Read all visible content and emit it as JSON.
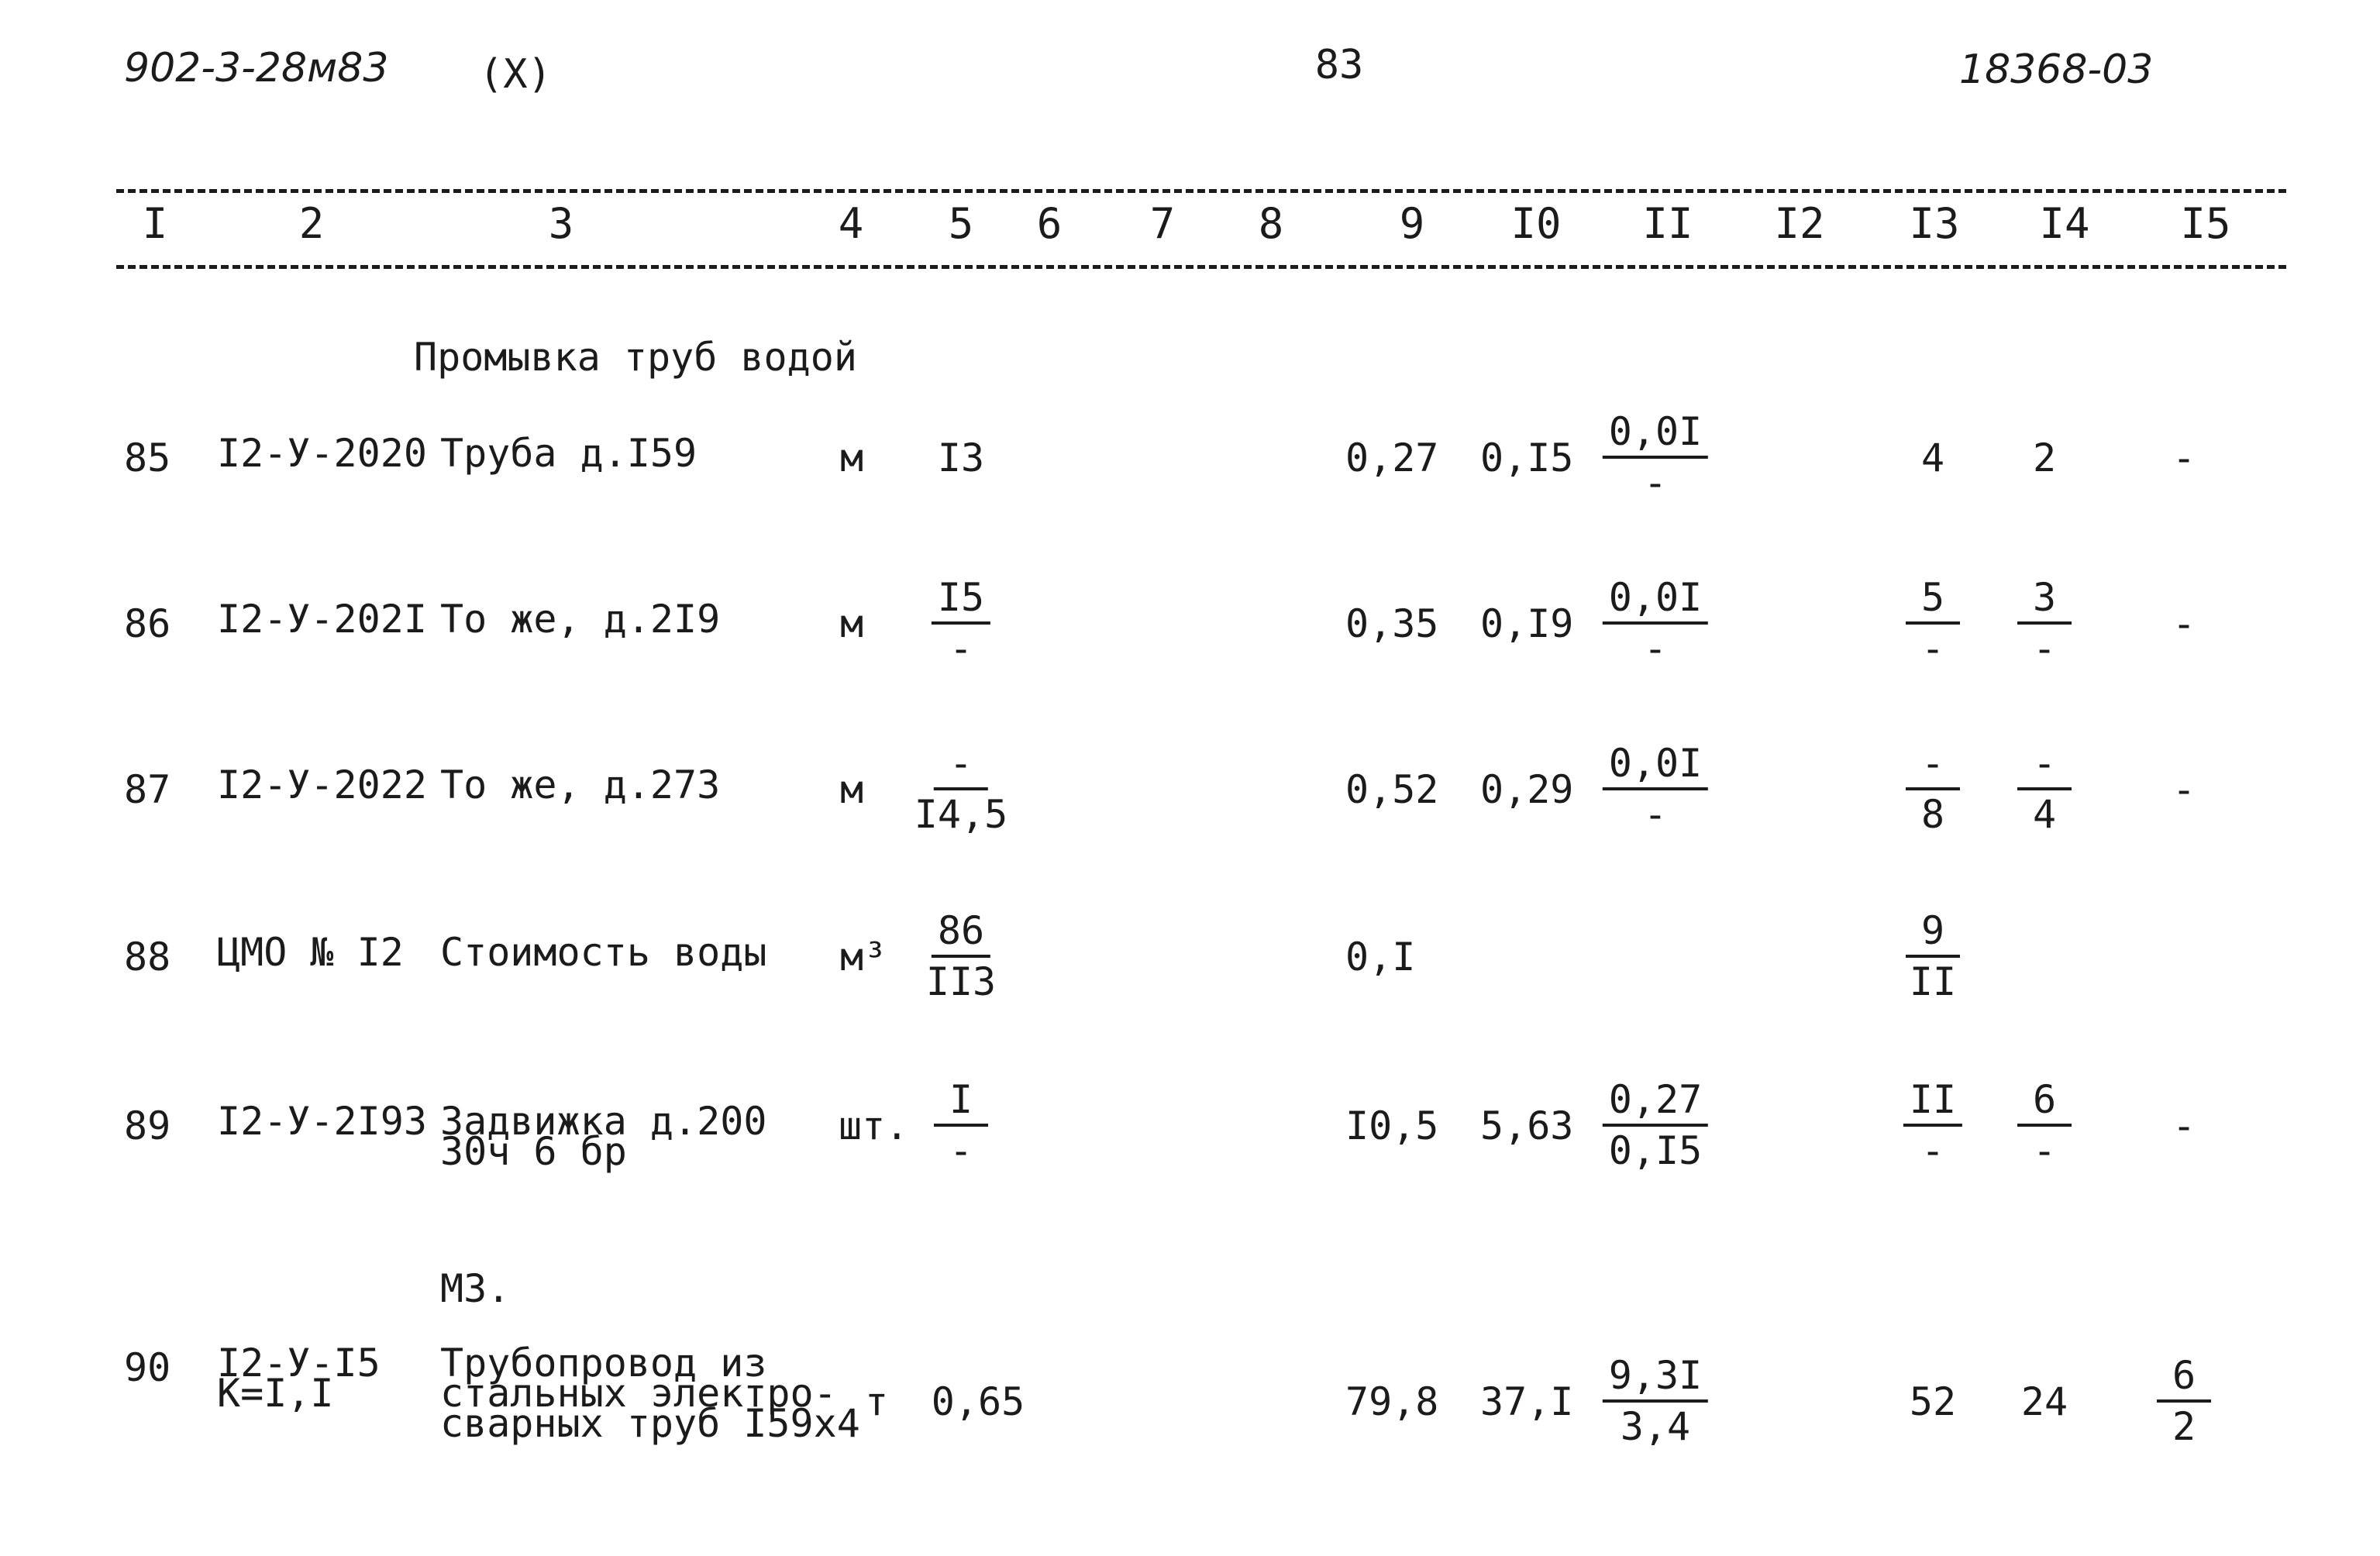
{
  "header": {
    "doc_code": "902-3-28м83",
    "marker": "(X)",
    "page_number": "83",
    "sheet_code": "18368-03"
  },
  "columns": [
    "I",
    "2",
    "3",
    "4",
    "5",
    "6",
    "7",
    "8",
    "9",
    "I0",
    "II",
    "I2",
    "I3",
    "I4",
    "I5"
  ],
  "section_title": "Промывка труб водой",
  "rows": [
    {
      "num": "85",
      "code": "I2-У-2020",
      "name": "Труба д.I59",
      "unit": "м",
      "qty": {
        "num": "I3",
        "den": ""
      },
      "c9": "0,27",
      "c10": "0,I5",
      "c11": {
        "num": "0,0I",
        "den": "-"
      },
      "c13": {
        "num": "4",
        "den": ""
      },
      "c14": {
        "num": "2",
        "den": ""
      },
      "c15": {
        "num": "-",
        "den": ""
      }
    },
    {
      "num": "86",
      "code": "I2-У-202I",
      "name": "То же, д.2I9",
      "unit": "м",
      "qty": {
        "num": "I5",
        "den": "-"
      },
      "c9": "0,35",
      "c10": "0,I9",
      "c11": {
        "num": "0,0I",
        "den": "-"
      },
      "c13": {
        "num": "5",
        "den": "-"
      },
      "c14": {
        "num": "3",
        "den": "-"
      },
      "c15": {
        "num": "-",
        "den": ""
      }
    },
    {
      "num": "87",
      "code": "I2-У-2022",
      "name": "То же, д.273",
      "unit": "м",
      "qty": {
        "num": "-",
        "den": "I4,5"
      },
      "c9": "0,52",
      "c10": "0,29",
      "c11": {
        "num": "0,0I",
        "den": "-"
      },
      "c13": {
        "num": "-",
        "den": "8"
      },
      "c14": {
        "num": "-",
        "den": "4"
      },
      "c15": {
        "num": "-",
        "den": ""
      }
    },
    {
      "num": "88",
      "code": "ЦМО № I2",
      "name": "Стоимость воды",
      "unit": "м³",
      "qty": {
        "num": "86",
        "den": "II3"
      },
      "c9": "0,I",
      "c10": "",
      "c11": {
        "num": "",
        "den": ""
      },
      "c13": {
        "num": "9",
        "den": "II"
      },
      "c14": {
        "num": "",
        "den": ""
      },
      "c15": {
        "num": "",
        "den": ""
      }
    },
    {
      "num": "89",
      "code": "I2-У-2I93",
      "name": "Задвижка д.200\n30ч 6 бр",
      "unit": "шт.",
      "qty": {
        "num": "I",
        "den": "-"
      },
      "c9": "I0,5",
      "c10": "5,63",
      "c11": {
        "num": "0,27",
        "den": "0,I5"
      },
      "c13": {
        "num": "II",
        "den": "-"
      },
      "c14": {
        "num": "6",
        "den": "-"
      },
      "c15": {
        "num": "-",
        "den": ""
      }
    },
    {
      "num": "90",
      "code": "I2-У-I5\nК=I,I",
      "subtitle": "М3.",
      "name": "Трубопровод из\nстальных электро-\nсварных труб I59х4",
      "unit": "т",
      "qty": {
        "num": "0,65",
        "den": ""
      },
      "c9": "79,8",
      "c10": "37,I",
      "c11": {
        "num": "9,3I",
        "den": "3,4"
      },
      "c13": {
        "num": "52",
        "den": ""
      },
      "c14": {
        "num": "24",
        "den": ""
      },
      "c15": {
        "num": "6",
        "den": "2"
      }
    }
  ]
}
